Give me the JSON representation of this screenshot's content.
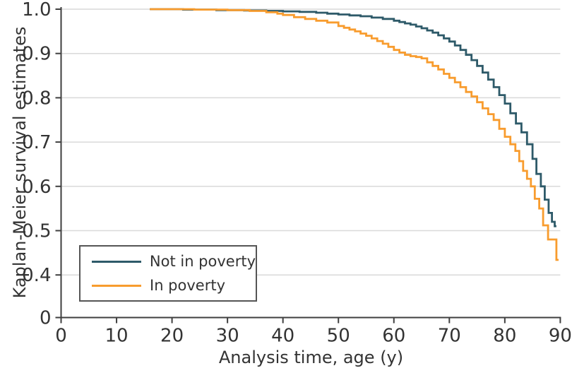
{
  "chart_data": {
    "type": "line",
    "variant": "kaplan-meier-step",
    "title": "",
    "xlabel": "Analysis time, age (y)",
    "ylabel": "Kaplan-Meier survival estimates",
    "x_axis": {
      "min": 0,
      "max": 90,
      "ticks": [
        0,
        10,
        20,
        30,
        40,
        50,
        60,
        70,
        80,
        90
      ]
    },
    "y_axis": {
      "min": 0.4,
      "max": 1.0,
      "ticks": [
        {
          "label": "1.0",
          "value": 1.0
        },
        {
          "label": "0.9",
          "value": 0.9
        },
        {
          "label": "0.8",
          "value": 0.8
        },
        {
          "label": "0.7",
          "value": 0.7
        },
        {
          "label": "0.6",
          "value": 0.6
        },
        {
          "label": "0.5",
          "value": 0.5
        },
        {
          "label": "0.4",
          "value": 0.4
        }
      ],
      "origin_tick": {
        "label": "0"
      }
    },
    "grid": {
      "horizontal": true,
      "vertical": false,
      "color": "#d9d9d9"
    },
    "axis_color": "#3f3f3f",
    "text_color": "#333333",
    "legend": {
      "position": "bottom-left",
      "items": [
        {
          "label": "Not in poverty",
          "color": "#2e5a69"
        },
        {
          "label": "In poverty",
          "color": "#f89c2e"
        }
      ]
    },
    "series": [
      {
        "name": "Not in poverty",
        "slug": "not-in-poverty",
        "color": "#2e5a69",
        "end_x": 89.3,
        "points": [
          [
            16,
            1.0
          ],
          [
            22,
            0.999
          ],
          [
            28,
            0.998
          ],
          [
            33,
            0.997
          ],
          [
            37,
            0.996
          ],
          [
            40,
            0.995
          ],
          [
            43,
            0.994
          ],
          [
            46,
            0.992
          ],
          [
            48,
            0.99
          ],
          [
            50,
            0.988
          ],
          [
            52,
            0.986
          ],
          [
            54,
            0.984
          ],
          [
            56,
            0.981
          ],
          [
            58,
            0.978
          ],
          [
            60,
            0.974
          ],
          [
            61,
            0.971
          ],
          [
            62,
            0.968
          ],
          [
            63,
            0.965
          ],
          [
            64,
            0.961
          ],
          [
            65,
            0.957
          ],
          [
            66,
            0.952
          ],
          [
            67,
            0.947
          ],
          [
            68,
            0.941
          ],
          [
            69,
            0.934
          ],
          [
            70,
            0.927
          ],
          [
            71,
            0.918
          ],
          [
            72,
            0.908
          ],
          [
            73,
            0.897
          ],
          [
            74,
            0.885
          ],
          [
            75,
            0.872
          ],
          [
            76,
            0.857
          ],
          [
            77,
            0.841
          ],
          [
            78,
            0.824
          ],
          [
            79,
            0.806
          ],
          [
            80,
            0.787
          ],
          [
            81,
            0.765
          ],
          [
            82,
            0.742
          ],
          [
            83,
            0.722
          ],
          [
            84,
            0.695
          ],
          [
            85,
            0.662
          ],
          [
            85.7,
            0.628
          ],
          [
            86.5,
            0.6
          ],
          [
            87.2,
            0.57
          ],
          [
            87.9,
            0.54
          ],
          [
            88.5,
            0.52
          ],
          [
            89,
            0.51
          ]
        ]
      },
      {
        "name": "In poverty",
        "slug": "in-poverty",
        "color": "#f89c2e",
        "end_x": 89.7,
        "points": [
          [
            16,
            1.0
          ],
          [
            24,
            0.999
          ],
          [
            30,
            0.998
          ],
          [
            34,
            0.996
          ],
          [
            37,
            0.993
          ],
          [
            39,
            0.99
          ],
          [
            40,
            0.987
          ],
          [
            42,
            0.982
          ],
          [
            44,
            0.978
          ],
          [
            46,
            0.974
          ],
          [
            48,
            0.97
          ],
          [
            50,
            0.962
          ],
          [
            51,
            0.958
          ],
          [
            52,
            0.954
          ],
          [
            53,
            0.95
          ],
          [
            54,
            0.945
          ],
          [
            55,
            0.94
          ],
          [
            56,
            0.934
          ],
          [
            57,
            0.928
          ],
          [
            58,
            0.922
          ],
          [
            59,
            0.915
          ],
          [
            60,
            0.908
          ],
          [
            61,
            0.902
          ],
          [
            62,
            0.897
          ],
          [
            63,
            0.894
          ],
          [
            64,
            0.892
          ],
          [
            65,
            0.889
          ],
          [
            66,
            0.88
          ],
          [
            67,
            0.872
          ],
          [
            68,
            0.864
          ],
          [
            69,
            0.854
          ],
          [
            70,
            0.845
          ],
          [
            71,
            0.835
          ],
          [
            72,
            0.824
          ],
          [
            73,
            0.813
          ],
          [
            74,
            0.803
          ],
          [
            75,
            0.79
          ],
          [
            76,
            0.776
          ],
          [
            77,
            0.763
          ],
          [
            78,
            0.75
          ],
          [
            79,
            0.73
          ],
          [
            80,
            0.712
          ],
          [
            81,
            0.695
          ],
          [
            81.9,
            0.68
          ],
          [
            82.6,
            0.657
          ],
          [
            83.3,
            0.635
          ],
          [
            84,
            0.617
          ],
          [
            84.7,
            0.6
          ],
          [
            85.4,
            0.572
          ],
          [
            86.2,
            0.55
          ],
          [
            86.9,
            0.512
          ],
          [
            87.8,
            0.48
          ],
          [
            89.3,
            0.434
          ]
        ]
      }
    ]
  }
}
